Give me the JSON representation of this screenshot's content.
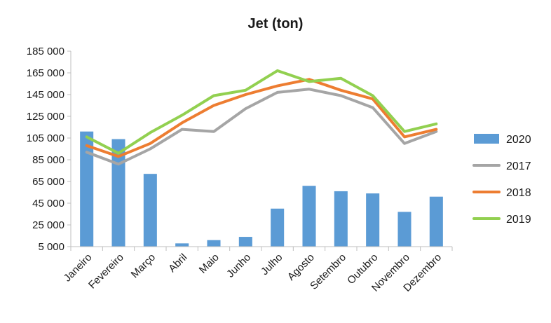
{
  "chart_data": {
    "type": "bar+line",
    "title": "Jet (ton)",
    "categories": [
      "Janeiro",
      "Fevereiro",
      "Março",
      "Abril",
      "Maio",
      "Junho",
      "Julho",
      "Agosto",
      "Setembro",
      "Outubro",
      "Novembro",
      "Dezembro"
    ],
    "ylim": [
      5000,
      185000
    ],
    "yticks": [
      5000,
      25000,
      45000,
      65000,
      85000,
      105000,
      125000,
      145000,
      165000,
      185000
    ],
    "ytick_labels": [
      "5 000",
      "25 000",
      "45 000",
      "65 000",
      "85 000",
      "105 000",
      "125 000",
      "145 000",
      "165 000",
      "185 000"
    ],
    "grid": false,
    "legend_position": "right",
    "series": [
      {
        "name": "2020",
        "kind": "bar",
        "color": "#5b9bd5",
        "values": [
          111000,
          104000,
          72000,
          8000,
          11000,
          14000,
          40000,
          61000,
          56000,
          54000,
          37000,
          51000
        ]
      },
      {
        "name": "2017",
        "kind": "line",
        "color": "#a5a5a5",
        "values": [
          92000,
          81000,
          95000,
          113000,
          111000,
          132000,
          147000,
          150000,
          144000,
          133000,
          100000,
          111000
        ]
      },
      {
        "name": "2018",
        "kind": "line",
        "color": "#ed7d31",
        "values": [
          98000,
          88000,
          100000,
          119000,
          135000,
          145000,
          153000,
          159000,
          149000,
          141000,
          106000,
          113000
        ]
      },
      {
        "name": "2019",
        "kind": "line",
        "color": "#92d050",
        "values": [
          106000,
          91000,
          110000,
          126000,
          144000,
          149000,
          167000,
          157000,
          160000,
          144000,
          111000,
          118000
        ]
      }
    ]
  }
}
